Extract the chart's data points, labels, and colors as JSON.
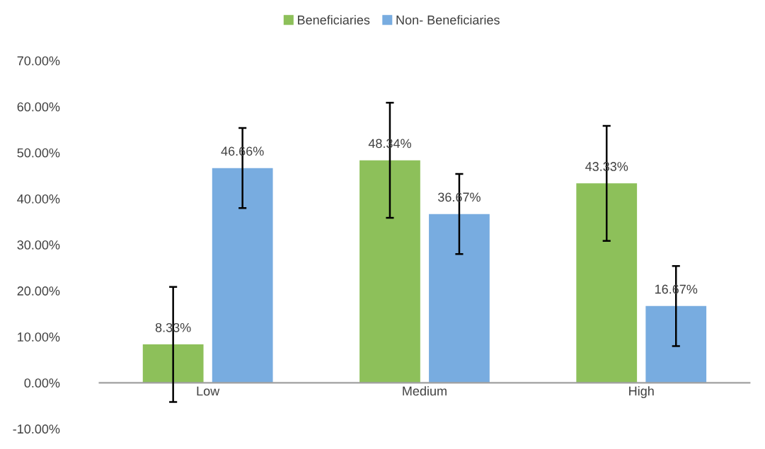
{
  "chart_data": {
    "type": "bar",
    "categories": [
      "Low",
      "Medium",
      "High"
    ],
    "series": [
      {
        "name": "Beneficiaries",
        "color": "#8dc05a",
        "values": [
          8.33,
          48.34,
          43.33
        ],
        "errors": [
          12.5,
          12.5,
          12.5
        ],
        "value_labels": [
          "8.33%",
          "48.34%",
          "43.33%"
        ]
      },
      {
        "name": "Non- Beneficiaries",
        "color": "#78ace0",
        "values": [
          46.66,
          36.67,
          16.67
        ],
        "errors": [
          8.7,
          8.7,
          8.7
        ],
        "value_labels": [
          "46.66%",
          "36.67%",
          "16.67%"
        ]
      }
    ],
    "ylim": [
      -10,
      70
    ],
    "yticks": [
      {
        "value": -10,
        "label": "-10.00%"
      },
      {
        "value": 0,
        "label": "0.00%"
      },
      {
        "value": 10,
        "label": "10.00%"
      },
      {
        "value": 20,
        "label": "20.00%"
      },
      {
        "value": 30,
        "label": "30.00%"
      },
      {
        "value": 40,
        "label": "40.00%"
      },
      {
        "value": 50,
        "label": "50.00%"
      },
      {
        "value": 60,
        "label": "60.00%"
      },
      {
        "value": 70,
        "label": "70.00%"
      }
    ],
    "grid": false,
    "legend": "top"
  }
}
